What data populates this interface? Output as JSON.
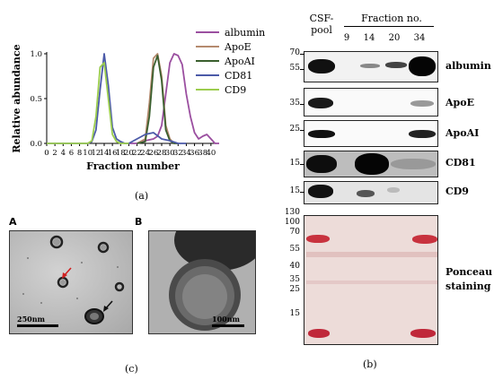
{
  "chart_data": {
    "type": "line",
    "xlabel": "Fraction number",
    "ylabel": "Relative abundance",
    "xlim": [
      0,
      42
    ],
    "ylim": [
      0,
      1.0
    ],
    "xticks": [
      "0",
      "2",
      "4",
      "6",
      "8",
      "10",
      "12",
      "14",
      "16",
      "18",
      "20",
      "22",
      "24",
      "26",
      "28",
      "30",
      "32",
      "34",
      "36",
      "38",
      "40"
    ],
    "yticks": [
      "0.0",
      "0.5",
      "1.0"
    ],
    "legend_position": "right",
    "series": [
      {
        "name": "albumin",
        "color": "#9b4fa0",
        "x": [
          20,
          22,
          24,
          26,
          27,
          28,
          29,
          30,
          31,
          32,
          33,
          34,
          35,
          36,
          37,
          38,
          39,
          40,
          41,
          42
        ],
        "y": [
          0,
          0,
          0.03,
          0.05,
          0.08,
          0.2,
          0.55,
          0.9,
          1.0,
          0.98,
          0.88,
          0.55,
          0.3,
          0.12,
          0.05,
          0.08,
          0.1,
          0.05,
          0,
          0
        ]
      },
      {
        "name": "ApoE",
        "color": "#b58a6e",
        "x": [
          22,
          24,
          25,
          26,
          27,
          28,
          29,
          30,
          31,
          32
        ],
        "y": [
          0,
          0.05,
          0.45,
          0.95,
          1.0,
          0.75,
          0.2,
          0.05,
          0,
          0
        ]
      },
      {
        "name": "ApoAI",
        "color": "#3a5f2e",
        "x": [
          22,
          24,
          25,
          26,
          27,
          28,
          29,
          30,
          31,
          32
        ],
        "y": [
          0,
          0.02,
          0.3,
          0.85,
          0.98,
          0.7,
          0.15,
          0.03,
          0,
          0
        ]
      },
      {
        "name": "CD81",
        "color": "#4b5aa8",
        "x": [
          0,
          10,
          11,
          12,
          13,
          14,
          15,
          16,
          17,
          18,
          19,
          20,
          22,
          24,
          26,
          28,
          30,
          32,
          34
        ],
        "y": [
          0,
          0,
          0.02,
          0.15,
          0.6,
          1.0,
          0.65,
          0.18,
          0.05,
          0.02,
          0,
          0,
          0.05,
          0.1,
          0.12,
          0.05,
          0.03,
          0,
          0
        ]
      },
      {
        "name": "CD9",
        "color": "#9ccd4e",
        "x": [
          0,
          10,
          11,
          12,
          13,
          14,
          15,
          16,
          17,
          18,
          19,
          20
        ],
        "y": [
          0,
          0,
          0.03,
          0.3,
          0.85,
          0.9,
          0.5,
          0.1,
          0.02,
          0,
          0,
          0
        ]
      }
    ]
  },
  "labels": {
    "panel_a": "(a)",
    "panel_b": "(b)",
    "panel_c": "(c)",
    "em_a_letter": "A",
    "em_b_letter": "B",
    "scalebar_a": "250nm",
    "scalebar_b": "100nm"
  },
  "blot": {
    "header_csf": "CSF-",
    "header_pool": "pool",
    "header_fraction": "Fraction no.",
    "lanes": [
      "9",
      "14",
      "20",
      "34"
    ],
    "rows": [
      "albumin",
      "ApoE",
      "ApoAI",
      "CD81",
      "CD9"
    ],
    "ponceau_line1": "Ponceau",
    "ponceau_line2": "staining",
    "mw_albumin": [
      "70",
      "55"
    ],
    "mw_apoe": [
      "35"
    ],
    "mw_apoai": [
      "25"
    ],
    "mw_cd81": [
      "15"
    ],
    "mw_cd9": [
      "15"
    ],
    "mw_ponceau": [
      "130",
      "100",
      "70",
      "55",
      "40",
      "35",
      "25",
      "15"
    ]
  }
}
